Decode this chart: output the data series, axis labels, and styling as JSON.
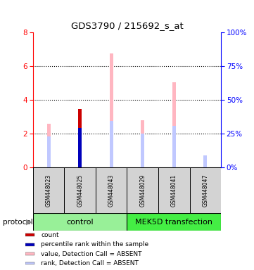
{
  "title": "GDS3790 / 215692_s_at",
  "samples": [
    "GSM448023",
    "GSM448025",
    "GSM448043",
    "GSM448029",
    "GSM448041",
    "GSM448047"
  ],
  "ylim_left": [
    0,
    8
  ],
  "ylim_right": [
    0,
    100
  ],
  "yticks_left": [
    0,
    2,
    4,
    6,
    8
  ],
  "yticks_right": [
    0,
    25,
    50,
    75,
    100
  ],
  "yticklabels_right": [
    "0%",
    "25%",
    "50%",
    "75%",
    "100%"
  ],
  "value_absent": [
    2.6,
    3.45,
    6.75,
    2.8,
    5.05,
    0.65
  ],
  "rank_absent": [
    1.85,
    0.0,
    2.75,
    2.02,
    2.48,
    0.73
  ],
  "count_present": [
    0.0,
    3.45,
    0.0,
    0.0,
    0.0,
    0.0
  ],
  "percentile_present": [
    0.0,
    2.35,
    0.0,
    0.0,
    0.0,
    0.0
  ],
  "color_value_absent": "#FFB6C1",
  "color_rank_absent": "#C0C8FF",
  "color_count": "#CC0000",
  "color_percentile": "#0000BB",
  "background_label": "#D3D3D3",
  "control_color": "#98F098",
  "mek_color": "#44EE44",
  "bar_width": 0.12,
  "legend_items": [
    {
      "label": "count",
      "color": "#CC0000"
    },
    {
      "label": "percentile rank within the sample",
      "color": "#0000BB"
    },
    {
      "label": "value, Detection Call = ABSENT",
      "color": "#FFB6C1"
    },
    {
      "label": "rank, Detection Call = ABSENT",
      "color": "#C0C8FF"
    }
  ]
}
